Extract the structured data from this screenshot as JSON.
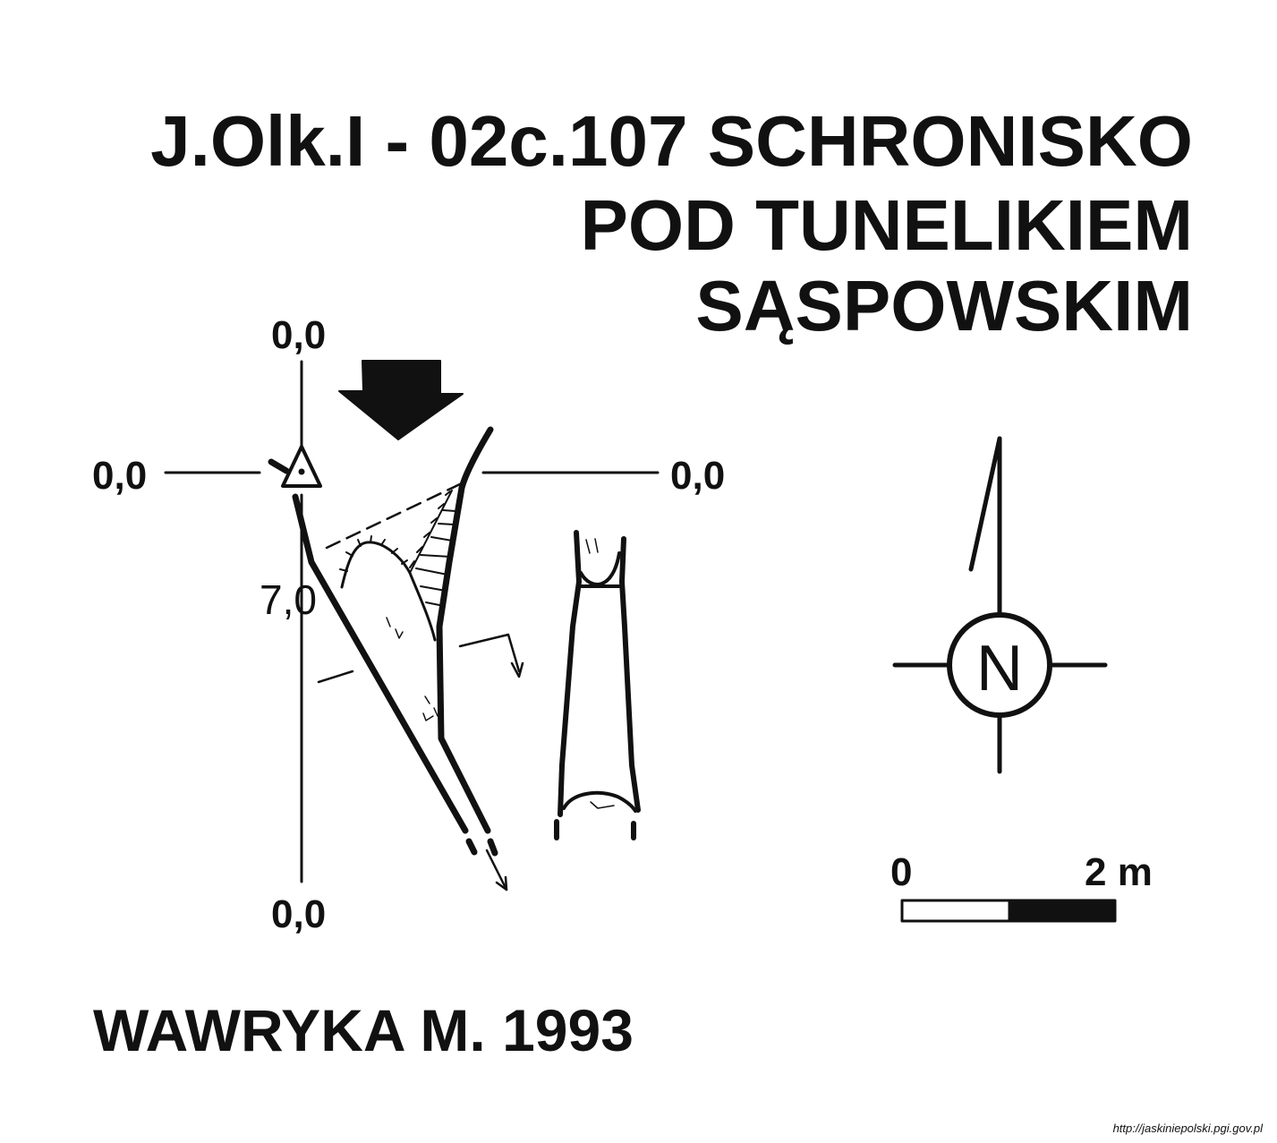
{
  "title": {
    "line1": "J.Olk.I - 02c.107  SCHRONISKO",
    "line2": "POD TUNELIKIEM",
    "line3": "SĄSPOWSKIM"
  },
  "survey": {
    "top_label": "0,0",
    "left_label": "0,0",
    "right_label": "0,0",
    "bottom_label": "0,0",
    "depth_label": "7,0"
  },
  "compass": {
    "letter": "N"
  },
  "scale_bar": {
    "start_label": "0",
    "end_label": "2 m"
  },
  "author": "WAWRYKA M. 1993",
  "source_url": "http://jaskiniepolski.pgi.gov.pl"
}
